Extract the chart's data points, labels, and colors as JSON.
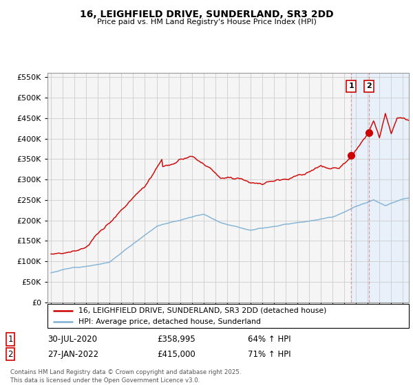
{
  "title": "16, LEIGHFIELD DRIVE, SUNDERLAND, SR3 2DD",
  "subtitle": "Price paid vs. HM Land Registry's House Price Index (HPI)",
  "legend_line1": "16, LEIGHFIELD DRIVE, SUNDERLAND, SR3 2DD (detached house)",
  "legend_line2": "HPI: Average price, detached house, Sunderland",
  "footer": "Contains HM Land Registry data © Crown copyright and database right 2025.\nThis data is licensed under the Open Government Licence v3.0.",
  "transaction1_label": "1",
  "transaction1_date": "30-JUL-2020",
  "transaction1_price": "£358,995",
  "transaction1_hpi": "64% ↑ HPI",
  "transaction1_year": 2020.58,
  "transaction1_value": 358995,
  "transaction2_label": "2",
  "transaction2_date": "27-JAN-2022",
  "transaction2_price": "£415,000",
  "transaction2_hpi": "71% ↑ HPI",
  "transaction2_year": 2022.07,
  "transaction2_value": 415000,
  "hpi_color": "#7bafd4",
  "price_color": "#cc0000",
  "vline_color": "#cc0000",
  "vline_alpha": 0.35,
  "shade_color": "#ddeeff",
  "shade_alpha": 0.5,
  "ylim": [
    0,
    560000
  ],
  "yticks": [
    0,
    50000,
    100000,
    150000,
    200000,
    250000,
    300000,
    350000,
    400000,
    450000,
    500000,
    550000
  ],
  "background_color": "#ffffff",
  "plot_bg_color": "#f5f5f5",
  "grid_color": "#cccccc",
  "xlim_left": 1994.7,
  "xlim_right": 2025.5
}
